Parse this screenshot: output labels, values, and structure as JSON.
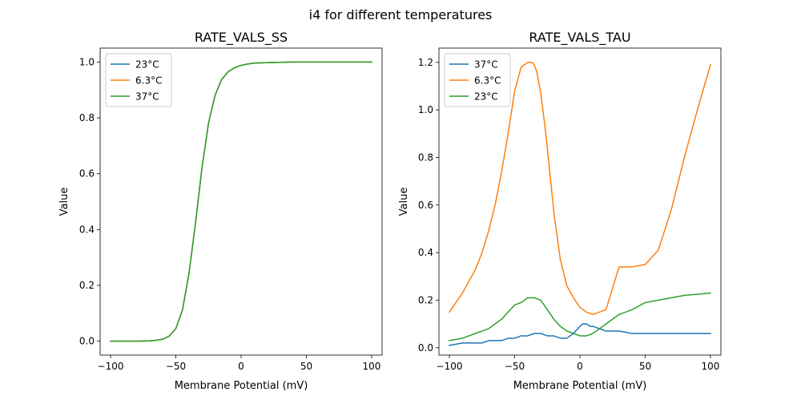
{
  "figure_title": "i4 for different temperatures",
  "chart_data": [
    {
      "type": "line",
      "title": "RATE_VALS_SS",
      "xlabel": "Membrane Potential (mV)",
      "ylabel": "Value",
      "xlim": [
        -108,
        108
      ],
      "ylim": [
        -0.05,
        1.05
      ],
      "xticks": [
        -100,
        -50,
        0,
        50,
        100
      ],
      "yticks": [
        0.0,
        0.2,
        0.4,
        0.6,
        0.8,
        1.0
      ],
      "xtick_labels": [
        "−100",
        "−50",
        "0",
        "50",
        "100"
      ],
      "ytick_labels": [
        "0.0",
        "0.2",
        "0.4",
        "0.6",
        "0.8",
        "1.0"
      ],
      "legend_position": "upper-left",
      "series": [
        {
          "name": "23°C",
          "color": "#1f77b4",
          "x": [
            -100,
            -90,
            -80,
            -70,
            -65,
            -60,
            -55,
            -50,
            -45,
            -40,
            -35,
            -30,
            -25,
            -20,
            -15,
            -10,
            -5,
            0,
            5,
            10,
            20,
            30,
            40,
            60,
            80,
            100
          ],
          "y": [
            0.0,
            0.0,
            0.0,
            0.001,
            0.003,
            0.007,
            0.018,
            0.045,
            0.11,
            0.24,
            0.42,
            0.62,
            0.78,
            0.88,
            0.937,
            0.965,
            0.98,
            0.988,
            0.993,
            0.996,
            0.998,
            0.999,
            1.0,
            1.0,
            1.0,
            1.0
          ]
        },
        {
          "name": "6.3°C",
          "color": "#ff7f0e",
          "x": [
            -100,
            -90,
            -80,
            -70,
            -65,
            -60,
            -55,
            -50,
            -45,
            -40,
            -35,
            -30,
            -25,
            -20,
            -15,
            -10,
            -5,
            0,
            5,
            10,
            20,
            30,
            40,
            60,
            80,
            100
          ],
          "y": [
            0.0,
            0.0,
            0.0,
            0.001,
            0.003,
            0.007,
            0.018,
            0.045,
            0.11,
            0.24,
            0.42,
            0.62,
            0.78,
            0.88,
            0.937,
            0.965,
            0.98,
            0.988,
            0.993,
            0.996,
            0.998,
            0.999,
            1.0,
            1.0,
            1.0,
            1.0
          ]
        },
        {
          "name": "37°C",
          "color": "#2ca02c",
          "x": [
            -100,
            -90,
            -80,
            -70,
            -65,
            -60,
            -55,
            -50,
            -45,
            -40,
            -35,
            -30,
            -25,
            -20,
            -15,
            -10,
            -5,
            0,
            5,
            10,
            20,
            30,
            40,
            60,
            80,
            100
          ],
          "y": [
            0.0,
            0.0,
            0.0,
            0.001,
            0.003,
            0.007,
            0.018,
            0.045,
            0.11,
            0.24,
            0.42,
            0.62,
            0.78,
            0.88,
            0.937,
            0.965,
            0.98,
            0.988,
            0.993,
            0.996,
            0.998,
            0.999,
            1.0,
            1.0,
            1.0,
            1.0
          ]
        }
      ]
    },
    {
      "type": "line",
      "title": "RATE_VALS_TAU",
      "xlabel": "Membrane Potential (mV)",
      "ylabel": "Value",
      "xlim": [
        -108,
        108
      ],
      "ylim": [
        -0.031,
        1.26
      ],
      "xticks": [
        -100,
        -50,
        0,
        50,
        100
      ],
      "yticks": [
        0.0,
        0.2,
        0.4,
        0.6,
        0.8,
        1.0,
        1.2
      ],
      "xtick_labels": [
        "−100",
        "−50",
        "0",
        "50",
        "100"
      ],
      "ytick_labels": [
        "0.0",
        "0.2",
        "0.4",
        "0.6",
        "0.8",
        "1.0",
        "1.2"
      ],
      "legend_position": "upper-left",
      "series": [
        {
          "name": "37°C",
          "color": "#1f77b4",
          "x": [
            -100,
            -95,
            -90,
            -85,
            -80,
            -75,
            -70,
            -65,
            -60,
            -55,
            -50,
            -45,
            -40,
            -35,
            -30,
            -25,
            -20,
            -15,
            -10,
            -5,
            0,
            2,
            5,
            8,
            10,
            15,
            20,
            30,
            40,
            50,
            60,
            80,
            100
          ],
          "y": [
            0.01,
            0.015,
            0.02,
            0.02,
            0.02,
            0.02,
            0.03,
            0.03,
            0.03,
            0.04,
            0.04,
            0.05,
            0.05,
            0.06,
            0.06,
            0.05,
            0.05,
            0.04,
            0.04,
            0.06,
            0.09,
            0.1,
            0.1,
            0.09,
            0.09,
            0.08,
            0.07,
            0.07,
            0.06,
            0.06,
            0.06,
            0.06,
            0.06
          ]
        },
        {
          "name": "6.3°C",
          "color": "#ff7f0e",
          "x": [
            -100,
            -95,
            -90,
            -85,
            -80,
            -75,
            -70,
            -65,
            -60,
            -55,
            -50,
            -45,
            -40,
            -37,
            -35,
            -33,
            -30,
            -27,
            -25,
            -22,
            -20,
            -15,
            -10,
            -5,
            0,
            5,
            10,
            20,
            30,
            40,
            50,
            60,
            70,
            80,
            90,
            100
          ],
          "y": [
            0.15,
            0.19,
            0.23,
            0.28,
            0.33,
            0.4,
            0.49,
            0.6,
            0.74,
            0.9,
            1.08,
            1.18,
            1.2,
            1.2,
            1.19,
            1.16,
            1.07,
            0.94,
            0.84,
            0.68,
            0.57,
            0.37,
            0.26,
            0.21,
            0.17,
            0.15,
            0.14,
            0.16,
            0.34,
            0.34,
            0.35,
            0.41,
            0.58,
            0.8,
            1.0,
            1.19
          ]
        },
        {
          "name": "23°C",
          "color": "#2ca02c",
          "x": [
            -100,
            -95,
            -90,
            -85,
            -80,
            -75,
            -70,
            -65,
            -60,
            -55,
            -50,
            -45,
            -40,
            -35,
            -30,
            -25,
            -20,
            -15,
            -10,
            -5,
            0,
            5,
            10,
            15,
            20,
            30,
            40,
            50,
            60,
            80,
            100
          ],
          "y": [
            0.03,
            0.035,
            0.04,
            0.05,
            0.06,
            0.07,
            0.08,
            0.1,
            0.12,
            0.15,
            0.18,
            0.19,
            0.21,
            0.21,
            0.2,
            0.16,
            0.12,
            0.09,
            0.07,
            0.06,
            0.05,
            0.05,
            0.06,
            0.08,
            0.1,
            0.14,
            0.16,
            0.19,
            0.2,
            0.22,
            0.23
          ]
        }
      ]
    }
  ]
}
